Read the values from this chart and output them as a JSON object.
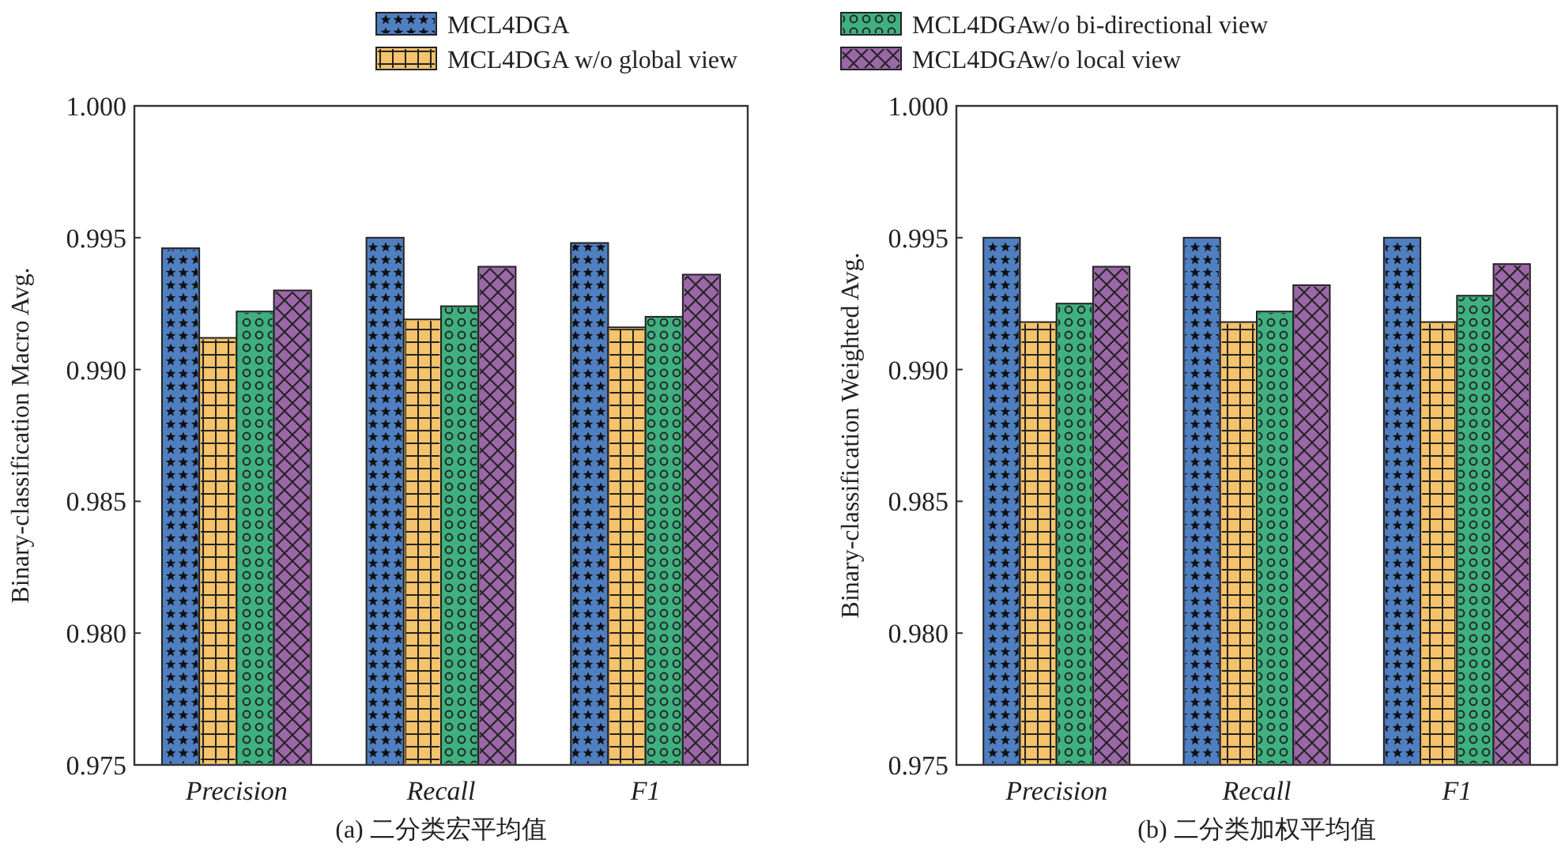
{
  "chart_data": [
    {
      "type": "bar",
      "ylabel": "Binary-classification Macro Avg.",
      "xlabel": "(a) 二分类宏平均值",
      "categories": [
        "Precision",
        "Recall",
        "F1"
      ],
      "ylim": [
        0.975,
        1.0
      ],
      "yticks": [
        0.975,
        {
          "value": 0.98,
          "label": "0.980"
        },
        0.985,
        {
          "value": 0.99,
          "label": "0.990"
        },
        0.995,
        {
          "value": 1.0,
          "label": "1.000"
        }
      ],
      "legend": "top",
      "grid": false,
      "series": [
        {
          "name": "MCL4DGA",
          "color": "#4f7fc1",
          "values": [
            0.9946,
            0.995,
            0.9948
          ]
        },
        {
          "name": "MCL4DGA w/o global view",
          "color": "#f5c36b",
          "values": [
            0.9912,
            0.9919,
            0.9916
          ]
        },
        {
          "name": "MCL4DGAw/o bi-directional view",
          "color": "#3fb07f",
          "values": [
            0.9922,
            0.9924,
            0.992
          ]
        },
        {
          "name": "MCL4DGAw/o local view",
          "color": "#9b67a8",
          "values": [
            0.993,
            0.9939,
            0.9936
          ]
        }
      ]
    },
    {
      "type": "bar",
      "ylabel": "Binary-classification Weighted Avg.",
      "xlabel": "(b) 二分类加权平均值",
      "categories": [
        "Precision",
        "Recall",
        "F1"
      ],
      "ylim": [
        0.975,
        1.0
      ],
      "yticks": [
        0.975,
        {
          "value": 0.98,
          "label": "0.980"
        },
        0.985,
        {
          "value": 0.99,
          "label": "0.990"
        },
        0.995,
        {
          "value": 1.0,
          "label": "1.000"
        }
      ],
      "grid": false,
      "series": [
        {
          "color": "#4f7fc1",
          "values": [
            0.995,
            0.995,
            0.995
          ]
        },
        {
          "color": "#f5c36b",
          "values": [
            0.9918,
            0.9918,
            0.9918
          ]
        },
        {
          "color": "#3fb07f",
          "values": [
            0.9925,
            0.9922,
            0.9928
          ]
        },
        {
          "color": "#9b67a8",
          "values": [
            0.9939,
            0.9932,
            0.994
          ]
        }
      ]
    }
  ]
}
